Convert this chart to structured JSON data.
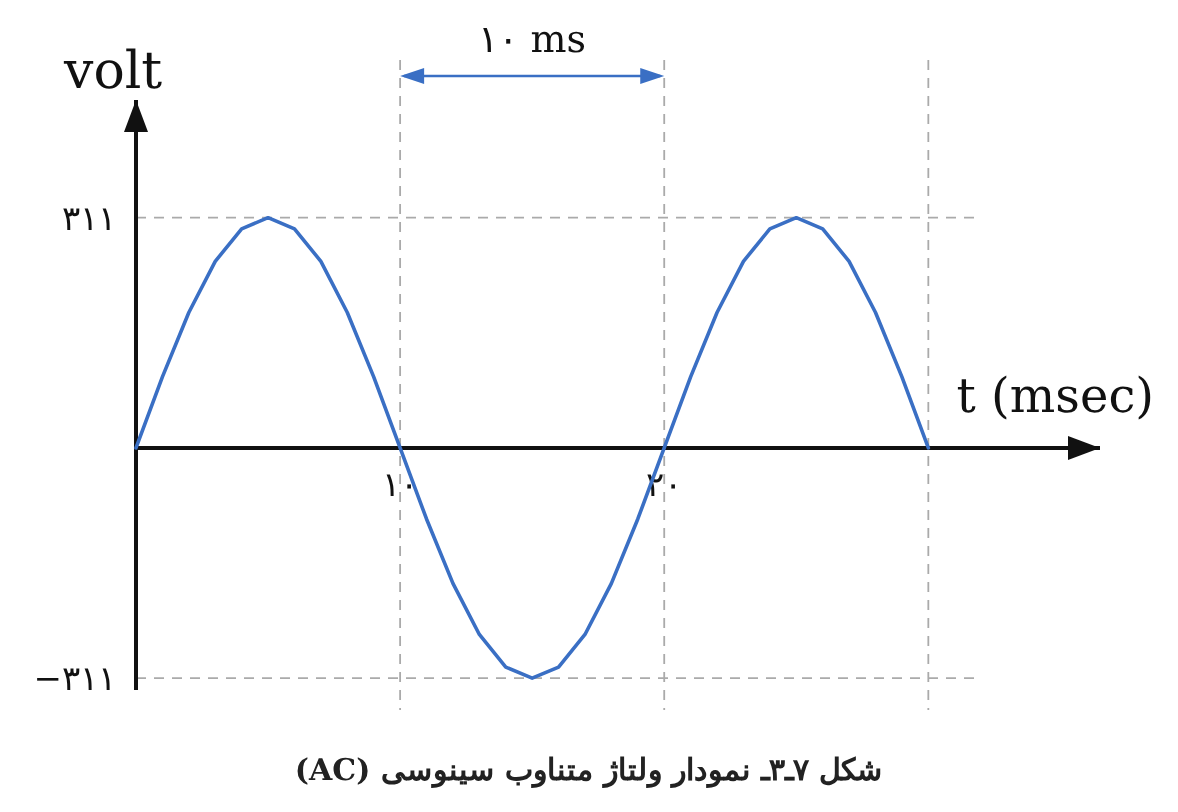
{
  "chart_data": {
    "type": "line",
    "xlabel": "t (msec)",
    "ylabel": "volt",
    "x": [
      0,
      1,
      2,
      3,
      4,
      5,
      6,
      7,
      8,
      9,
      10,
      11,
      12,
      13,
      14,
      15,
      16,
      17,
      18,
      19,
      20,
      21,
      22,
      23,
      24,
      25,
      26,
      27,
      28,
      29,
      30
    ],
    "series": [
      {
        "color": "#3a6fc4",
        "values": [
          0,
          96,
          183,
          252,
          296,
          311,
          296,
          252,
          183,
          96,
          0,
          -96,
          -183,
          -252,
          -296,
          -311,
          -296,
          -252,
          -183,
          -96,
          0,
          96,
          183,
          252,
          296,
          311,
          296,
          252,
          183,
          96,
          0
        ]
      }
    ],
    "xlim": [
      0,
      36.5
    ],
    "ylim": [
      -327,
      470
    ],
    "xticks": [
      {
        "value": 10,
        "label": "۱۰"
      },
      {
        "value": 20,
        "label": "۲۰"
      },
      {
        "value": 30,
        "label": null
      }
    ],
    "yticks": [
      {
        "value": 311,
        "label": "۳۱۱"
      },
      {
        "value": -311,
        "label": "−۳۱۱"
      }
    ],
    "grid": true,
    "marker": "none",
    "line_style": "solid",
    "annotations": [
      "۱۰ ms",
      "شکل ۷ـ۳ـ نمودار ولتاژ متناوب سینوسی (AC)"
    ]
  }
}
